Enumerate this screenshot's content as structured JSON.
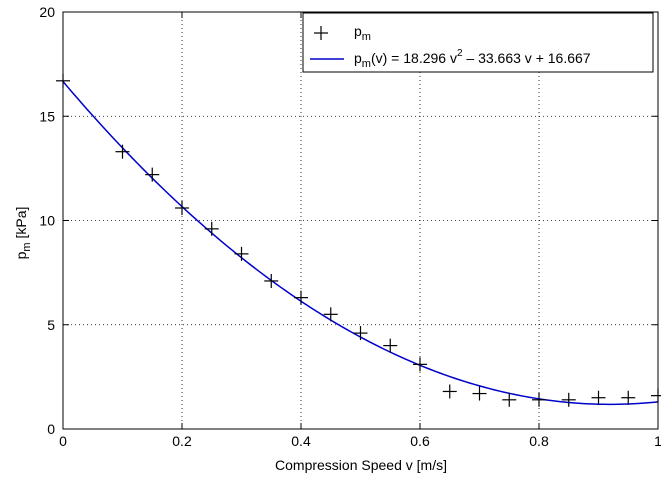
{
  "chart_data": {
    "type": "scatter",
    "xlabel": "Compression Speed v [m/s]",
    "ylabel": {
      "base": "p",
      "sub": "m",
      "rest": " [kPa]"
    },
    "xlim": [
      0,
      1
    ],
    "ylim": [
      0,
      20
    ],
    "xticks": [
      0,
      0.2,
      0.4,
      0.6,
      0.8,
      1
    ],
    "xtick_labels": [
      "0",
      "0.2",
      "0.4",
      "0.6",
      "0.8",
      "1"
    ],
    "yticks": [
      0,
      5,
      10,
      15,
      20
    ],
    "ytick_labels": [
      "0",
      "5",
      "10",
      "15",
      "20"
    ],
    "grid": true,
    "legend_position": "top-right",
    "series": [
      {
        "name": {
          "base": "p",
          "sub": "m"
        },
        "kind": "markers",
        "marker": "+",
        "color": "#000000",
        "x": [
          0,
          0.1,
          0.15,
          0.2,
          0.25,
          0.3,
          0.35,
          0.4,
          0.45,
          0.5,
          0.55,
          0.6,
          0.65,
          0.7,
          0.75,
          0.8,
          0.85,
          0.9,
          0.95,
          1.0
        ],
        "y": [
          16.7,
          13.3,
          12.2,
          10.6,
          9.6,
          8.4,
          7.1,
          6.3,
          5.5,
          4.6,
          4.0,
          3.1,
          1.8,
          1.7,
          1.4,
          1.4,
          1.4,
          1.5,
          1.5,
          1.6
        ]
      },
      {
        "name": {
          "base": "p",
          "sub": "m",
          "rest_a": "(v) = 18.296 v",
          "sup": "2",
          "rest_b": " – 33.663 v + 16.667"
        },
        "kind": "fit",
        "color": "#0000cc",
        "coefficients": [
          18.296,
          -33.663,
          16.667
        ]
      }
    ]
  }
}
